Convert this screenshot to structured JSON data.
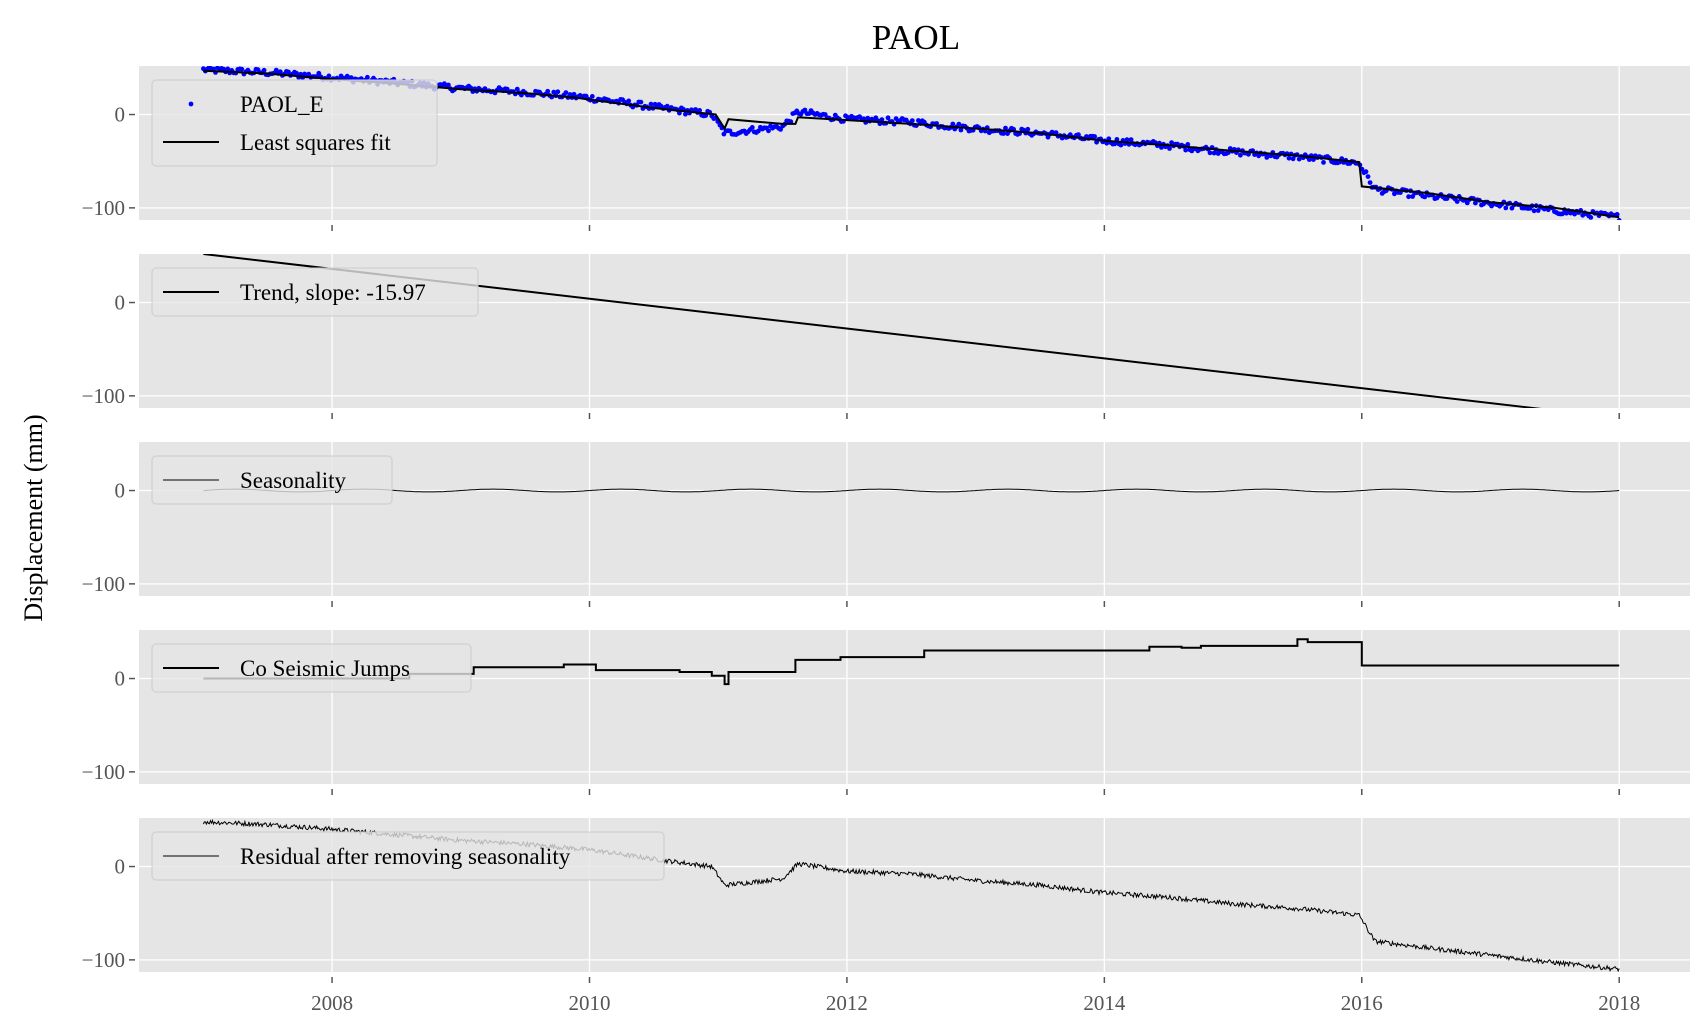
{
  "figure": {
    "title": "PAOL",
    "ylabel": "Displacement (mm)",
    "background": "#ffffff",
    "panel_background": "#e5e5e5",
    "grid_color": "#ffffff"
  },
  "chart_data": [
    {
      "type": "scatter",
      "title": "PAOL",
      "ylabel": "Displacement (mm)",
      "xlim": [
        2006.5,
        2018.55
      ],
      "ylim": [
        -113,
        52
      ],
      "grid": true,
      "legend_position": "upper-left",
      "xticks": [
        2008,
        2010,
        2012,
        2014,
        2016,
        2018
      ],
      "yticks": [
        0,
        -100
      ],
      "series": [
        {
          "name": "PAOL_E",
          "kind": "scatter",
          "color": "#0000ff",
          "x": [
            2007.0,
            2007.5,
            2008.0,
            2008.5,
            2009.0,
            2009.5,
            2010.0,
            2010.5,
            2010.95,
            2011.05,
            2011.5,
            2011.62,
            2012.0,
            2012.5,
            2013.0,
            2013.5,
            2014.0,
            2014.5,
            2015.0,
            2015.5,
            2015.98,
            2016.1,
            2016.5,
            2017.0,
            2017.5,
            2018.0
          ],
          "y": [
            48,
            45,
            40,
            34,
            28,
            24,
            18,
            8,
            0,
            -20,
            -13,
            3,
            -5,
            -8,
            -15,
            -20,
            -28,
            -33,
            -40,
            -45,
            -52,
            -80,
            -87,
            -95,
            -103,
            -110
          ]
        },
        {
          "name": "Least squares fit",
          "kind": "line",
          "color": "#000000",
          "x": [
            2007.0,
            2007.5,
            2008.0,
            2008.5,
            2009.0,
            2009.5,
            2009.9,
            2010.0,
            2010.5,
            2010.98,
            2011.05,
            2011.08,
            2011.5,
            2011.6,
            2011.62,
            2012.0,
            2012.5,
            2013.0,
            2013.5,
            2014.0,
            2014.5,
            2015.0,
            2015.5,
            2015.98,
            2016.0,
            2016.5,
            2017.0,
            2017.5,
            2018.0
          ],
          "y": [
            47,
            44,
            38,
            33,
            27,
            23,
            18,
            16,
            7,
            0,
            -15,
            -5,
            -10,
            -10,
            -3,
            -6,
            -10,
            -15,
            -20,
            -28,
            -33,
            -39,
            -44,
            -51,
            -77,
            -84,
            -94,
            -100,
            -110
          ]
        }
      ]
    },
    {
      "type": "line",
      "xlim": [
        2006.5,
        2018.55
      ],
      "ylim": [
        -113,
        52
      ],
      "grid": true,
      "legend_position": "upper-left",
      "xticks": [
        2008,
        2010,
        2012,
        2014,
        2016,
        2018
      ],
      "yticks": [
        0,
        -100
      ],
      "series": [
        {
          "name": "Trend, slope: -15.97",
          "color": "#000000",
          "x": [
            2007.0,
            2018.0
          ],
          "y": [
            52,
            -123.7
          ]
        }
      ]
    },
    {
      "type": "line",
      "xlim": [
        2006.5,
        2018.55
      ],
      "ylim": [
        -113,
        52
      ],
      "grid": true,
      "legend_position": "upper-left",
      "xticks": [
        2008,
        2010,
        2012,
        2014,
        2016,
        2018
      ],
      "yticks": [
        0,
        -100
      ],
      "series": [
        {
          "name": "Seasonality",
          "color": "#000000",
          "amplitude": 1.5,
          "period_years": 1,
          "x": [
            2007.0,
            2018.0
          ]
        }
      ]
    },
    {
      "type": "line",
      "xlim": [
        2006.5,
        2018.55
      ],
      "ylim": [
        -113,
        52
      ],
      "grid": true,
      "legend_position": "upper-left",
      "xticks": [
        2008,
        2010,
        2012,
        2014,
        2016,
        2018
      ],
      "yticks": [
        0,
        -100
      ],
      "series": [
        {
          "name": "Co Seismic Jumps",
          "color": "#000000",
          "step": true,
          "x": [
            2007.0,
            2008.6,
            2009.1,
            2009.8,
            2010.05,
            2010.7,
            2010.95,
            2011.05,
            2011.08,
            2011.6,
            2011.95,
            2012.6,
            2014.35,
            2014.6,
            2014.75,
            2015.5,
            2015.58,
            2016.0,
            2018.0
          ],
          "y": [
            0,
            5,
            12,
            15,
            9,
            7,
            3,
            -6,
            7,
            20,
            23,
            30,
            34,
            33,
            35,
            42,
            39,
            14,
            14
          ]
        }
      ]
    },
    {
      "type": "line",
      "xlim": [
        2006.5,
        2018.55
      ],
      "ylim": [
        -113,
        52
      ],
      "grid": true,
      "legend_position": "upper-left",
      "xticks": [
        2008,
        2010,
        2012,
        2014,
        2016,
        2018
      ],
      "yticks": [
        0,
        -100
      ],
      "series": [
        {
          "name": "Residual after removing seasonality",
          "color": "#000000",
          "x": [
            2007.0,
            2007.5,
            2008.0,
            2008.5,
            2009.0,
            2009.5,
            2010.0,
            2010.5,
            2010.95,
            2011.05,
            2011.5,
            2011.62,
            2012.0,
            2012.5,
            2013.0,
            2013.5,
            2014.0,
            2014.5,
            2015.0,
            2015.5,
            2015.98,
            2016.1,
            2016.5,
            2017.0,
            2017.5,
            2018.0
          ],
          "y": [
            48,
            45,
            40,
            34,
            28,
            24,
            18,
            8,
            0,
            -20,
            -13,
            3,
            -5,
            -8,
            -15,
            -20,
            -28,
            -33,
            -40,
            -45,
            -52,
            -80,
            -87,
            -95,
            -103,
            -110
          ]
        }
      ]
    }
  ]
}
